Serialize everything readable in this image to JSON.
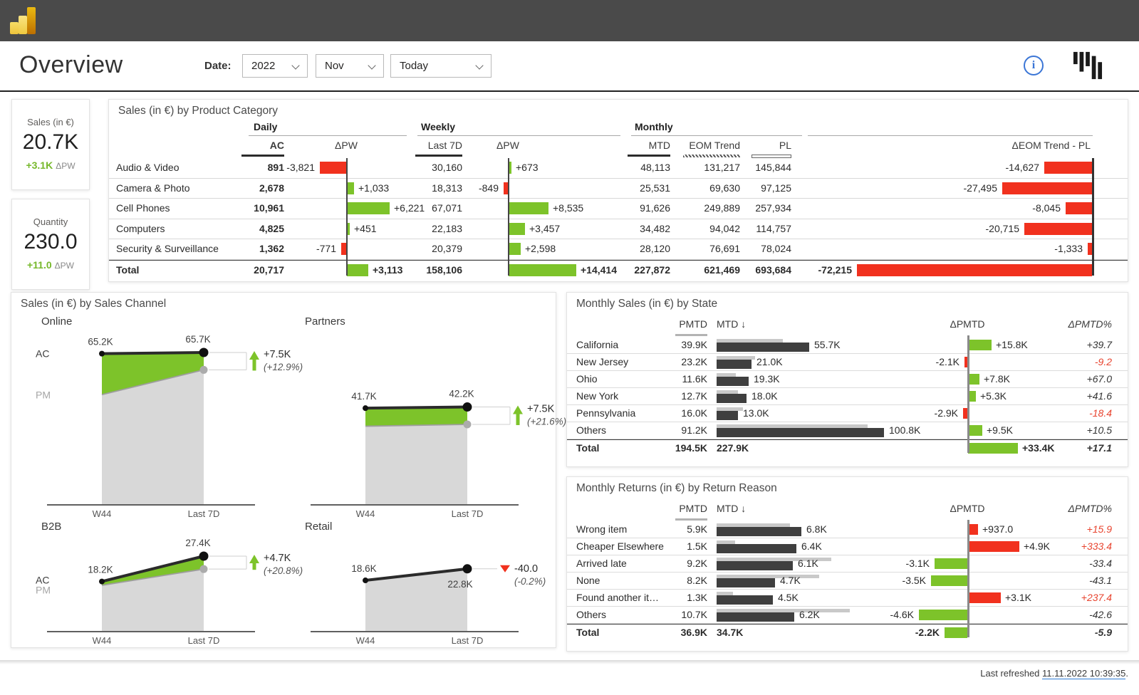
{
  "header": {
    "title": "Overview",
    "date_label": "Date:",
    "dropdowns": [
      {
        "value": "2022"
      },
      {
        "value": "Nov"
      },
      {
        "value": "Today"
      }
    ],
    "icons": {
      "logo": "power-bi-logo",
      "info": "info-circle",
      "brand": "zebra-bi-logo"
    }
  },
  "kpis": [
    {
      "label": "Sales (in €)",
      "value": "20.7K",
      "delta": "+3.1K",
      "delta_label": "ΔPW"
    },
    {
      "label": "Quantity",
      "value": "230.0",
      "delta": "+11.0",
      "delta_label": "ΔPW"
    }
  ],
  "product_table": {
    "title": "Sales (in €) by Product Category",
    "groups": {
      "daily": "Daily",
      "weekly": "Weekly",
      "monthly": "Monthly"
    },
    "columns": {
      "ac": "AC",
      "dpw": "ΔPW",
      "last7d": "Last 7D",
      "wdpw": "ΔPW",
      "mtd": "MTD",
      "eom": "EOM Trend",
      "pl": "PL",
      "deom": "ΔEOM Trend - PL"
    },
    "rows": [
      {
        "name": "Audio & Video",
        "ac": "891",
        "dpw": "-3,821",
        "last7d": "30,160",
        "wdpw": "+673",
        "mtd": "48,113",
        "eom": "131,217",
        "pl": "145,844",
        "deom": "-14,627"
      },
      {
        "name": "Camera & Photo",
        "ac": "2,678",
        "dpw": "+1,033",
        "last7d": "18,313",
        "wdpw": "-849",
        "mtd": "25,531",
        "eom": "69,630",
        "pl": "97,125",
        "deom": "-27,495"
      },
      {
        "name": "Cell Phones",
        "ac": "10,961",
        "dpw": "+6,221",
        "last7d": "67,071",
        "wdpw": "+8,535",
        "mtd": "91,626",
        "eom": "249,889",
        "pl": "257,934",
        "deom": "-8,045"
      },
      {
        "name": "Computers",
        "ac": "4,825",
        "dpw": "+451",
        "last7d": "22,183",
        "wdpw": "+3,457",
        "mtd": "34,482",
        "eom": "94,042",
        "pl": "114,757",
        "deom": "-20,715"
      },
      {
        "name": "Security & Surveillance",
        "ac": "1,362",
        "dpw": "-771",
        "last7d": "20,379",
        "wdpw": "+2,598",
        "mtd": "28,120",
        "eom": "76,691",
        "pl": "78,024",
        "deom": "-1,333"
      },
      {
        "name": "Total",
        "ac": "20,717",
        "dpw": "+3,113",
        "last7d": "158,106",
        "wdpw": "+14,414",
        "mtd": "227,872",
        "eom": "621,469",
        "pl": "693,684",
        "deom": "-72,215",
        "total": true
      }
    ]
  },
  "channels": {
    "title": "Sales (in €) by Sales Channel",
    "series_labels": {
      "ac": "AC",
      "pm": "PM"
    },
    "x_labels": [
      "W44",
      "Last 7D"
    ],
    "charts": [
      {
        "name": "Online",
        "ac": [
          65.2,
          65.7
        ],
        "pm": [
          47.5,
          58.2
        ],
        "ac_labels": [
          "65.2K",
          "65.7K"
        ],
        "delta": "+7.5K",
        "delta_pct": "(+12.9%)",
        "direction": "up",
        "show_series_labels": true,
        "right_label_below": false
      },
      {
        "name": "Partners",
        "ac": [
          41.7,
          42.2
        ],
        "pm": [
          33.9,
          34.7
        ],
        "ac_labels": [
          "41.7K",
          "42.2K"
        ],
        "delta": "+7.5K",
        "delta_pct": "(+21.6%)",
        "direction": "up",
        "show_series_labels": false,
        "right_label_below": false
      },
      {
        "name": "B2B",
        "ac": [
          18.2,
          27.4
        ],
        "pm": [
          16.8,
          22.7
        ],
        "ac_labels": [
          "18.2K",
          "27.4K"
        ],
        "delta": "+4.7K",
        "delta_pct": "(+20.8%)",
        "direction": "up",
        "show_series_labels": true,
        "right_label_below": false
      },
      {
        "name": "Retail",
        "ac": [
          18.6,
          22.8
        ],
        "pm": [
          18.6,
          22.8
        ],
        "ac_labels": [
          "18.6K",
          "22.8K"
        ],
        "delta": "-40.0",
        "delta_pct": "(-0.2%)",
        "direction": "down",
        "show_series_labels": false,
        "right_label_below": true
      }
    ]
  },
  "state_table": {
    "title": "Monthly Sales (in €) by State",
    "columns": {
      "pmtd": "PMTD",
      "mtd": "MTD ↓",
      "dpmtd": "ΔPMTD",
      "dpmtd_pct": "ΔPMTD%"
    },
    "rows": [
      {
        "name": "California",
        "pmtd": "39.9K",
        "mtd": "55.7K",
        "dpmtd": "+15.8K",
        "pct": "+39.7"
      },
      {
        "name": "New Jersey",
        "pmtd": "23.2K",
        "mtd": "21.0K",
        "dpmtd": "-2.1K",
        "pct": "-9.2"
      },
      {
        "name": "Ohio",
        "pmtd": "11.6K",
        "mtd": "19.3K",
        "dpmtd": "+7.8K",
        "pct": "+67.0"
      },
      {
        "name": "New York",
        "pmtd": "12.7K",
        "mtd": "18.0K",
        "dpmtd": "+5.3K",
        "pct": "+41.6"
      },
      {
        "name": "Pennsylvania",
        "pmtd": "16.0K",
        "mtd": "13.0K",
        "dpmtd": "-2.9K",
        "pct": "-18.4"
      },
      {
        "name": "Others",
        "pmtd": "91.2K",
        "mtd": "100.8K",
        "dpmtd": "+9.5K",
        "pct": "+10.5"
      },
      {
        "name": "Total",
        "pmtd": "194.5K",
        "mtd": "227.9K",
        "dpmtd": "+33.4K",
        "pct": "+17.1",
        "total": true
      }
    ]
  },
  "returns_table": {
    "title": "Monthly Returns (in €) by Return Reason",
    "columns": {
      "pmtd": "PMTD",
      "mtd": "MTD ↓",
      "dpmtd": "ΔPMTD",
      "dpmtd_pct": "ΔPMTD%"
    },
    "rows": [
      {
        "name": "Wrong item",
        "pmtd": "5.9K",
        "mtd": "6.8K",
        "dpmtd": "+937.0",
        "pct": "+15.9"
      },
      {
        "name": "Cheaper Elsewhere",
        "pmtd": "1.5K",
        "mtd": "6.4K",
        "dpmtd": "+4.9K",
        "pct": "+333.4"
      },
      {
        "name": "Arrived late",
        "pmtd": "9.2K",
        "mtd": "6.1K",
        "dpmtd": "-3.1K",
        "pct": "-33.4"
      },
      {
        "name": "None",
        "pmtd": "8.2K",
        "mtd": "4.7K",
        "dpmtd": "-3.5K",
        "pct": "-43.1"
      },
      {
        "name": "Found another it…",
        "pmtd": "1.3K",
        "mtd": "4.5K",
        "dpmtd": "+3.1K",
        "pct": "+237.4"
      },
      {
        "name": "Others",
        "pmtd": "10.7K",
        "mtd": "6.2K",
        "dpmtd": "-4.6K",
        "pct": "-42.6"
      },
      {
        "name": "Total",
        "pmtd": "36.9K",
        "mtd": "34.7K",
        "dpmtd": "-2.2K",
        "pct": "-5.9",
        "total": true
      }
    ]
  },
  "footer": {
    "label": "Last refreshed ",
    "timestamp": "11.11.2022 10:39:35",
    "suffix": "."
  },
  "colors": {
    "green": "#7dc32a",
    "red": "#f1311e",
    "red_text": "#e8442f",
    "dark_bar": "#3f3f3f",
    "gray_bar": "#c9c9c9",
    "pm_area": "#d8d8d8",
    "accent_blue": "#3b76d6",
    "link_blue": "#2e7cd6",
    "topbar": "#4a4a4a"
  },
  "chart_data": [
    {
      "type": "table",
      "title": "Sales (in €) by Product Category",
      "columns": [
        "Product Category",
        "Daily AC",
        "Daily ΔPW",
        "Weekly Last 7D",
        "Weekly ΔPW",
        "Monthly MTD",
        "Monthly EOM Trend",
        "Monthly PL",
        "ΔEOM Trend - PL"
      ],
      "rows": [
        [
          "Audio & Video",
          891,
          -3821,
          30160,
          673,
          48113,
          131217,
          145844,
          -14627
        ],
        [
          "Camera & Photo",
          2678,
          1033,
          18313,
          -849,
          25531,
          69630,
          97125,
          -27495
        ],
        [
          "Cell Phones",
          10961,
          6221,
          67071,
          8535,
          91626,
          249889,
          257934,
          -8045
        ],
        [
          "Computers",
          4825,
          451,
          22183,
          3457,
          34482,
          94042,
          114757,
          -20715
        ],
        [
          "Security & Surveillance",
          1362,
          -771,
          20379,
          2598,
          28120,
          76691,
          78024,
          -1333
        ],
        [
          "Total",
          20717,
          3113,
          158106,
          14414,
          227872,
          621469,
          693684,
          -72215
        ]
      ]
    },
    {
      "type": "area",
      "title": "Sales (in €) by Sales Channel",
      "x": [
        "W44",
        "Last 7D"
      ],
      "series": [
        {
          "name": "Online AC",
          "values": [
            65200,
            65700
          ]
        },
        {
          "name": "Online PM",
          "values": [
            47500,
            58200
          ]
        },
        {
          "name": "Partners AC",
          "values": [
            41700,
            42200
          ]
        },
        {
          "name": "Partners PM",
          "values": [
            33900,
            34700
          ]
        },
        {
          "name": "B2B AC",
          "values": [
            18200,
            27400
          ]
        },
        {
          "name": "B2B PM",
          "values": [
            16800,
            22700
          ]
        },
        {
          "name": "Retail AC",
          "values": [
            18600,
            22800
          ]
        },
        {
          "name": "Retail PM",
          "values": [
            18640,
            22840
          ]
        }
      ],
      "annotations": [
        "Online +7.5K (+12.9%)",
        "Partners +7.5K (+21.6%)",
        "B2B +4.7K (+20.8%)",
        "Retail -40.0 (-0.2%)"
      ]
    },
    {
      "type": "bar",
      "title": "Monthly Sales (in €) by State",
      "categories": [
        "California",
        "New Jersey",
        "Ohio",
        "New York",
        "Pennsylvania",
        "Others",
        "Total"
      ],
      "series": [
        {
          "name": "PMTD",
          "values": [
            39900,
            23200,
            11600,
            12700,
            16000,
            91200,
            194500
          ]
        },
        {
          "name": "MTD",
          "values": [
            55700,
            21000,
            19300,
            18000,
            13000,
            100800,
            227900
          ]
        },
        {
          "name": "ΔPMTD",
          "values": [
            15800,
            -2100,
            7800,
            5300,
            -2900,
            9500,
            33400
          ]
        },
        {
          "name": "ΔPMTD%",
          "values": [
            39.7,
            -9.2,
            67.0,
            41.6,
            -18.4,
            10.5,
            17.1
          ]
        }
      ]
    },
    {
      "type": "bar",
      "title": "Monthly Returns (in €) by Return Reason",
      "categories": [
        "Wrong item",
        "Cheaper Elsewhere",
        "Arrived late",
        "None",
        "Found another it…",
        "Others",
        "Total"
      ],
      "series": [
        {
          "name": "PMTD",
          "values": [
            5900,
            1500,
            9200,
            8200,
            1300,
            10700,
            36900
          ]
        },
        {
          "name": "MTD",
          "values": [
            6800,
            6400,
            6100,
            4700,
            4500,
            6200,
            34700
          ]
        },
        {
          "name": "ΔPMTD",
          "values": [
            937,
            4900,
            -3100,
            -3500,
            3100,
            -4600,
            -2200
          ]
        },
        {
          "name": "ΔPMTD%",
          "values": [
            15.9,
            333.4,
            -33.4,
            -43.1,
            237.4,
            -42.6,
            -5.9
          ]
        }
      ]
    }
  ]
}
